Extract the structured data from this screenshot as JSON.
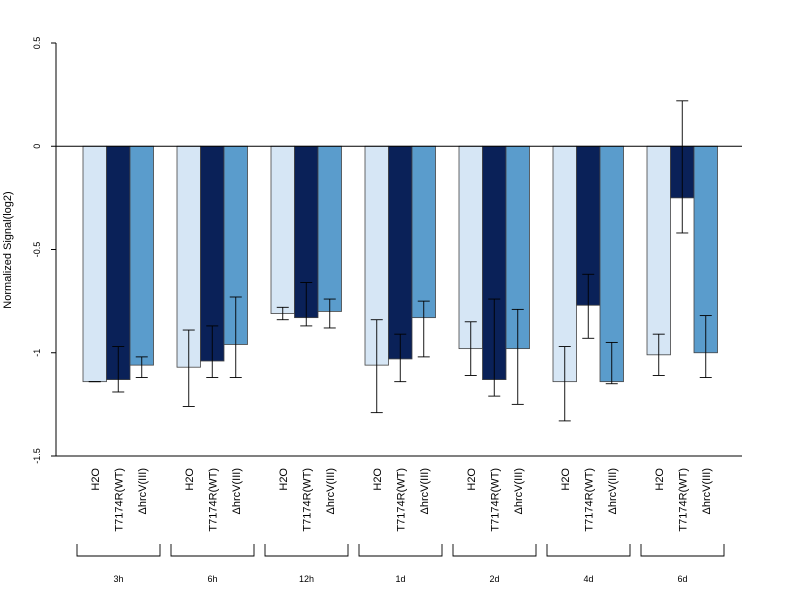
{
  "chart_data": {
    "type": "bar",
    "title": "",
    "xlabel": "",
    "ylabel": "Normalized Signal(log2)",
    "ylim": [
      -1.5,
      0.5
    ],
    "yticks": [
      "0.5",
      "0",
      "-0.5",
      "-1",
      "-1.5"
    ],
    "grid": false,
    "legend": "none",
    "groups": [
      "3h",
      "6h",
      "12h",
      "1d",
      "2d",
      "4d",
      "6d"
    ],
    "treatments": [
      "H2O",
      "T7174R(WT)",
      "ΔhrcV(III)"
    ],
    "colors": [
      "#d6e6f5",
      "#0a2158",
      "#5a9ccc"
    ],
    "series": [
      {
        "values": [
          -1.14,
          -1.07,
          -0.81,
          -1.06,
          -0.98,
          -1.14,
          -1.01
        ],
        "lower": [
          -1.14,
          -1.26,
          -0.84,
          -1.29,
          -1.11,
          -1.33,
          -1.11
        ],
        "upper": [
          -1.14,
          -0.89,
          -0.78,
          -0.84,
          -0.85,
          -0.97,
          -0.91
        ]
      },
      {
        "values": [
          -1.13,
          -1.04,
          -0.83,
          -1.03,
          -1.13,
          -0.77,
          -0.25
        ],
        "lower": [
          -1.19,
          -1.12,
          -0.87,
          -1.14,
          -1.21,
          -0.93,
          -0.42
        ],
        "upper": [
          -0.97,
          -0.87,
          -0.66,
          -0.91,
          -0.74,
          -0.62,
          0.22
        ]
      },
      {
        "values": [
          -1.06,
          -0.96,
          -0.8,
          -0.83,
          -0.98,
          -1.14,
          -1.0
        ],
        "lower": [
          -1.12,
          -1.12,
          -0.88,
          -1.02,
          -1.25,
          -1.15,
          -1.12
        ],
        "upper": [
          -1.02,
          -0.73,
          -0.74,
          -0.75,
          -0.79,
          -0.95,
          -0.82
        ]
      }
    ]
  }
}
